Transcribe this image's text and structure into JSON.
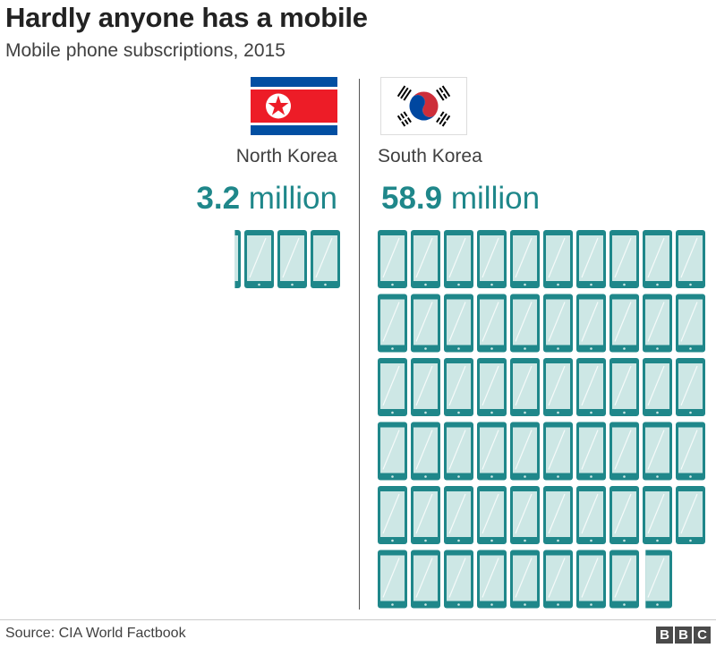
{
  "chart_data": {
    "type": "pictogram",
    "title": "Hardly anyone has a mobile",
    "subtitle": "Mobile phone subscriptions, 2015",
    "unit": "million",
    "categories": [
      "North Korea",
      "South Korea"
    ],
    "values": [
      3.2,
      58.9
    ],
    "value_labels": [
      "3.2",
      "58.9"
    ],
    "icon": "mobile-phone-icon",
    "icon_value": 1,
    "grid_on": false
  },
  "colors": {
    "accent": "#1f878a",
    "phone_body": "#1f878a",
    "phone_screen": "#cde7e5",
    "nk_blue": "#024fa2",
    "nk_red": "#ed1c27",
    "sk_red": "#cd2e3a",
    "sk_blue": "#0047a0"
  },
  "footer": {
    "source": "Source: CIA World Factbook",
    "logo": [
      "B",
      "B",
      "C"
    ]
  }
}
